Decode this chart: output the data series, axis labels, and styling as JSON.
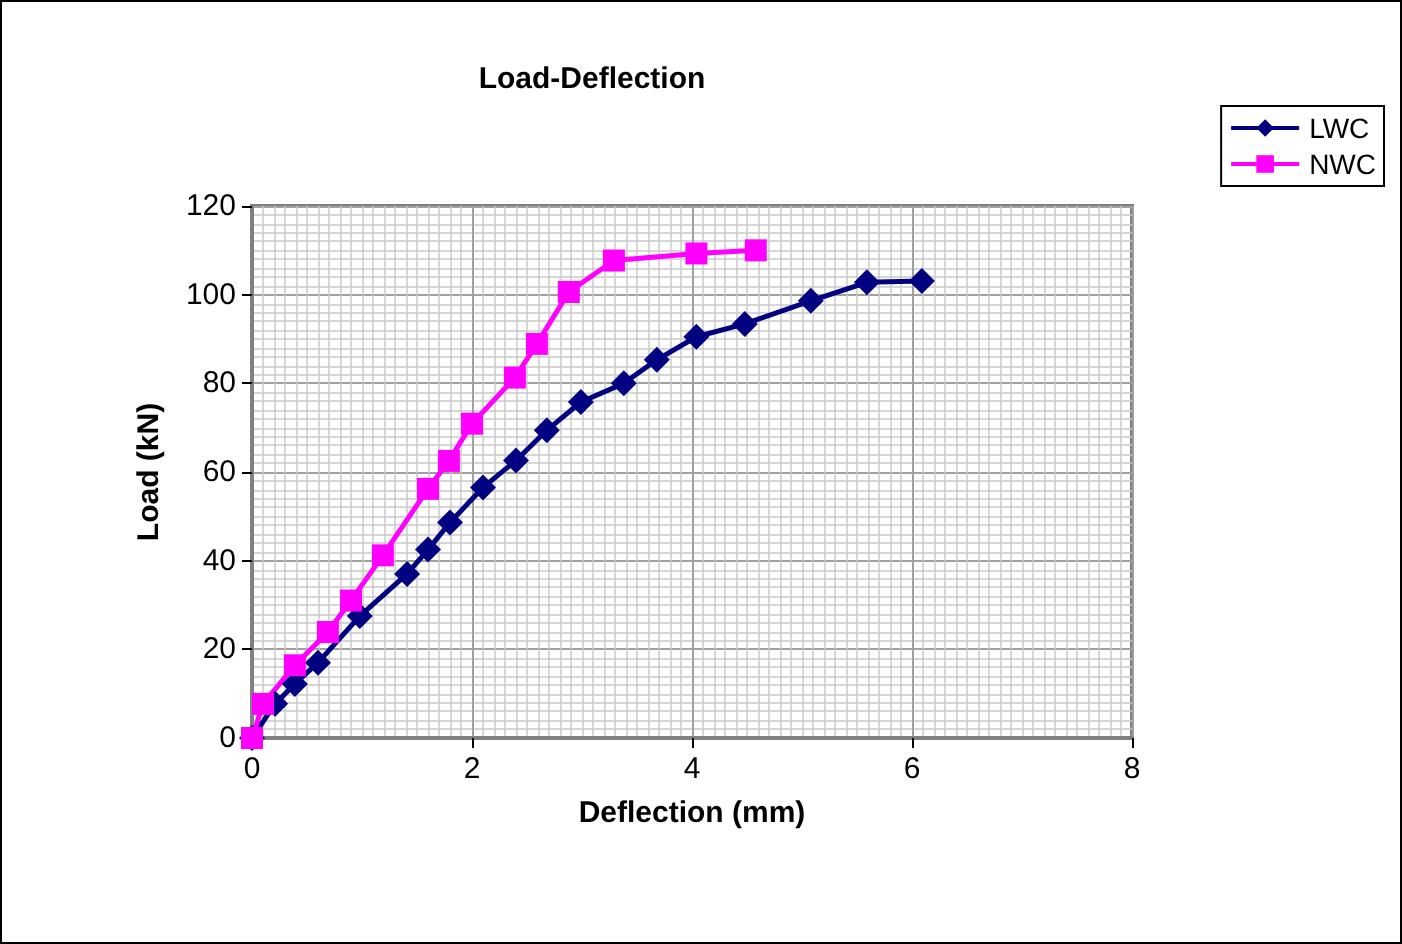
{
  "chart_data": {
    "type": "line",
    "title": "Load-Deflection",
    "xlabel": "Deflection (mm)",
    "ylabel": "Load (kN)",
    "xlim": [
      0,
      8
    ],
    "xticks": [
      0,
      2,
      4,
      6,
      8
    ],
    "ylim": [
      0,
      120
    ],
    "yticks": [
      0,
      20,
      40,
      60,
      80,
      100,
      120
    ],
    "grid": true,
    "legend": "top right",
    "line_style": "solid",
    "series": [
      {
        "name": "LWC",
        "color": "#000080",
        "marker": "diamond",
        "x": [
          0,
          0.21,
          0.39,
          0.6,
          0.98,
          1.41,
          1.6,
          1.8,
          2.1,
          2.4,
          2.68,
          2.99,
          3.38,
          3.68,
          4.04,
          4.48,
          5.08,
          5.59,
          6.09
        ],
        "values": [
          0,
          7.7,
          12.2,
          17,
          27.5,
          37,
          42.5,
          48.6,
          56.5,
          62.6,
          69.4,
          75.8,
          80,
          85.3,
          90.5,
          93.4,
          98.6,
          102.8,
          103.1
        ]
      },
      {
        "name": "NWC",
        "color": "#ff00ff",
        "marker": "square",
        "x": [
          0,
          0.1,
          0.39,
          0.69,
          0.9,
          1.19,
          1.6,
          1.79,
          2.0,
          2.39,
          2.59,
          2.88,
          3.29,
          4.04,
          4.58
        ],
        "values": [
          0,
          7.7,
          16.4,
          23.9,
          31,
          41.2,
          56.2,
          62.5,
          70.9,
          81.3,
          88.9,
          100.6,
          107.7,
          109.3,
          110
        ]
      }
    ]
  }
}
